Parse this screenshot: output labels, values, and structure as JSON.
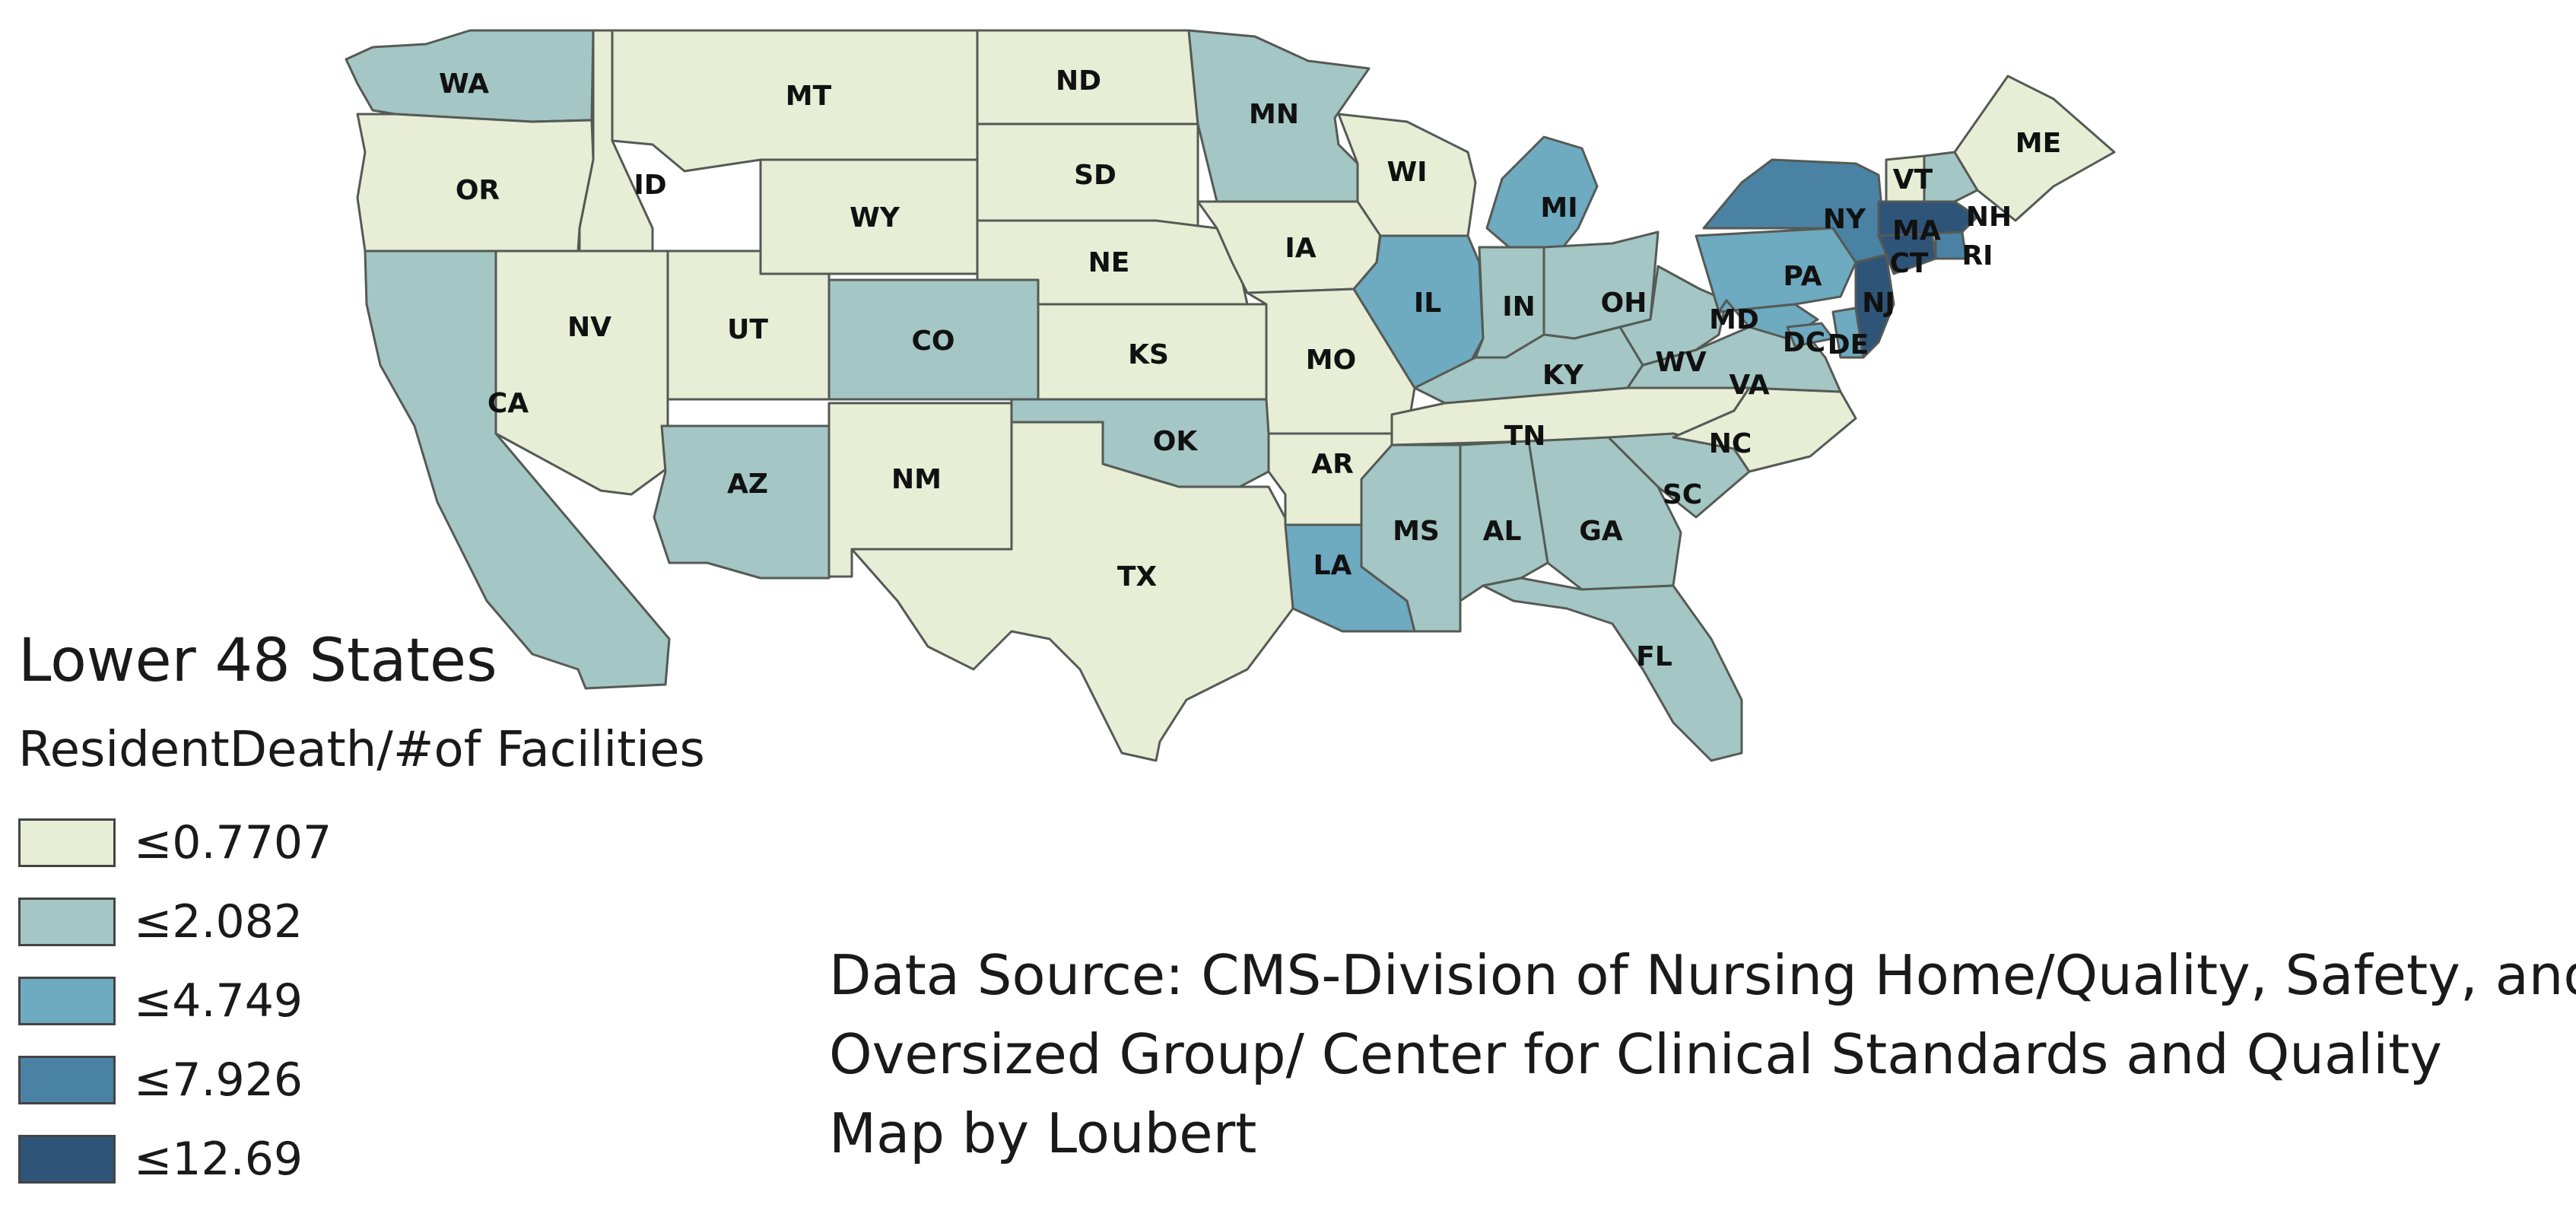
{
  "legend": {
    "title": "Lower 48 States",
    "subtitle": "ResidentDeath/#of Facilities",
    "classes": [
      {
        "label": "≤0.7707",
        "color": "#e8edd6"
      },
      {
        "label": "≤2.082",
        "color": "#a4c6c4"
      },
      {
        "label": "≤4.749",
        "color": "#6eaac0"
      },
      {
        "label": "≤7.926",
        "color": "#4a82a4"
      },
      {
        "label": "≤12.69",
        "color": "#2e5478"
      }
    ]
  },
  "source": {
    "line1": "Data Source: CMS-Division of Nursing Home/Quality, Safety, and",
    "line2": "Oversized Group/ Center for Clinical Standards and Quality",
    "line3": "Map by Loubert"
  },
  "states": [
    {
      "abbr": "WA",
      "class": 1
    },
    {
      "abbr": "OR",
      "class": 0
    },
    {
      "abbr": "CA",
      "class": 1
    },
    {
      "abbr": "ID",
      "class": 0
    },
    {
      "abbr": "NV",
      "class": 0
    },
    {
      "abbr": "MT",
      "class": 0
    },
    {
      "abbr": "WY",
      "class": 0
    },
    {
      "abbr": "UT",
      "class": 0
    },
    {
      "abbr": "AZ",
      "class": 1
    },
    {
      "abbr": "CO",
      "class": 1
    },
    {
      "abbr": "NM",
      "class": 0
    },
    {
      "abbr": "ND",
      "class": 0
    },
    {
      "abbr": "SD",
      "class": 0
    },
    {
      "abbr": "NE",
      "class": 0
    },
    {
      "abbr": "KS",
      "class": 0
    },
    {
      "abbr": "OK",
      "class": 1
    },
    {
      "abbr": "TX",
      "class": 0
    },
    {
      "abbr": "MN",
      "class": 1
    },
    {
      "abbr": "IA",
      "class": 0
    },
    {
      "abbr": "MO",
      "class": 0
    },
    {
      "abbr": "AR",
      "class": 0
    },
    {
      "abbr": "LA",
      "class": 2
    },
    {
      "abbr": "WI",
      "class": 0
    },
    {
      "abbr": "IL",
      "class": 2
    },
    {
      "abbr": "MI",
      "class": 2
    },
    {
      "abbr": "IN",
      "class": 1
    },
    {
      "abbr": "OH",
      "class": 1
    },
    {
      "abbr": "KY",
      "class": 1
    },
    {
      "abbr": "TN",
      "class": 0
    },
    {
      "abbr": "MS",
      "class": 1
    },
    {
      "abbr": "AL",
      "class": 1
    },
    {
      "abbr": "GA",
      "class": 1
    },
    {
      "abbr": "FL",
      "class": 1
    },
    {
      "abbr": "SC",
      "class": 1
    },
    {
      "abbr": "NC",
      "class": 0
    },
    {
      "abbr": "VA",
      "class": 1
    },
    {
      "abbr": "WV",
      "class": 1
    },
    {
      "abbr": "PA",
      "class": 2
    },
    {
      "abbr": "NY",
      "class": 3
    },
    {
      "abbr": "MD",
      "class": 2
    },
    {
      "abbr": "DC",
      "class": 2
    },
    {
      "abbr": "DE",
      "class": 2
    },
    {
      "abbr": "NJ",
      "class": 4
    },
    {
      "abbr": "CT",
      "class": 4
    },
    {
      "abbr": "RI",
      "class": 3
    },
    {
      "abbr": "MA",
      "class": 4
    },
    {
      "abbr": "VT",
      "class": 0
    },
    {
      "abbr": "NH",
      "class": 1
    },
    {
      "abbr": "ME",
      "class": 0
    }
  ]
}
